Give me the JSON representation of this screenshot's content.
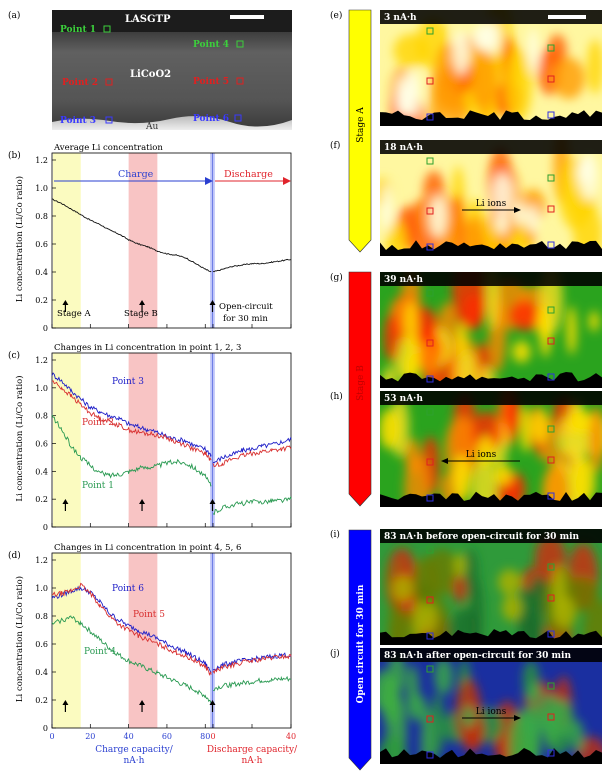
{
  "panel_labels": [
    "(a)",
    "(b)",
    "(c)",
    "(d)",
    "(e)",
    "(f)",
    "(g)",
    "(h)",
    "(i)",
    "(j)"
  ],
  "panel_a": {
    "top_label": "LASGTP",
    "middle_label": "LiCoO2",
    "bottom_label": "Au",
    "points": [
      "Point 1",
      "Point 2",
      "Point 3",
      "Point 4",
      "Point 5",
      "Point 6"
    ]
  },
  "shared": {
    "ylabel": "Li concentration (Li/Co ratio)",
    "yticks": [
      "0",
      "0.2",
      "0.4",
      "0.6",
      "0.8",
      "1.0",
      "1.2"
    ],
    "xticks_charge": [
      "0",
      "20",
      "40",
      "60",
      "80"
    ],
    "xticks_discharge": [
      "0",
      "40"
    ],
    "xlabel_charge": "Charge capacity/",
    "xlabel_charge_unit": "nA·h",
    "xlabel_discharge": "Discharge capacity/",
    "xlabel_discharge_unit": "nA·h",
    "colors": {
      "charge": "#2a3fd0",
      "discharge": "#e0242c",
      "stageA": "#fbfbc0",
      "stageB": "#f8c4c4",
      "oc": "#6f7ee6"
    }
  },
  "chart_data": [
    {
      "type": "line",
      "panel": "b",
      "title": "Average Li concentration",
      "ylim": [
        0,
        1.2
      ],
      "xlim_charge": [
        0,
        83
      ],
      "xlim_discharge": [
        0,
        40
      ],
      "charge_label": "Charge",
      "discharge_label": "Discharge",
      "stageA_label": "Stage A",
      "stageB_label": "Stage B",
      "oc_label_1": "Open-circuit",
      "oc_label_2": "for 30 min",
      "series": [
        {
          "name": "average",
          "color": "#111111",
          "charge": [
            [
              0,
              0.92
            ],
            [
              5,
              0.89
            ],
            [
              10,
              0.85
            ],
            [
              15,
              0.81
            ],
            [
              20,
              0.77
            ],
            [
              25,
              0.74
            ],
            [
              30,
              0.7
            ],
            [
              35,
              0.67
            ],
            [
              40,
              0.63
            ],
            [
              45,
              0.6
            ],
            [
              50,
              0.58
            ],
            [
              55,
              0.55
            ],
            [
              60,
              0.53
            ],
            [
              65,
              0.52
            ],
            [
              70,
              0.5
            ],
            [
              75,
              0.46
            ],
            [
              80,
              0.42
            ],
            [
              83,
              0.4
            ]
          ],
          "discharge": [
            [
              0,
              0.4
            ],
            [
              5,
              0.42
            ],
            [
              10,
              0.44
            ],
            [
              15,
              0.45
            ],
            [
              20,
              0.46
            ],
            [
              25,
              0.46
            ],
            [
              30,
              0.47
            ],
            [
              35,
              0.48
            ],
            [
              40,
              0.49
            ]
          ]
        }
      ]
    },
    {
      "type": "line",
      "panel": "c",
      "title": "Changes in Li concentration in point 1, 2, 3",
      "ylim": [
        0,
        1.2
      ],
      "series": [
        {
          "name": "Point 3",
          "color": "#2020c8",
          "charge": [
            [
              0,
              1.1
            ],
            [
              5,
              1.05
            ],
            [
              10,
              0.98
            ],
            [
              15,
              0.92
            ],
            [
              20,
              0.86
            ],
            [
              25,
              0.83
            ],
            [
              30,
              0.8
            ],
            [
              35,
              0.78
            ],
            [
              40,
              0.74
            ],
            [
              45,
              0.72
            ],
            [
              50,
              0.7
            ],
            [
              55,
              0.68
            ],
            [
              60,
              0.65
            ],
            [
              65,
              0.63
            ],
            [
              70,
              0.62
            ],
            [
              75,
              0.58
            ],
            [
              80,
              0.56
            ],
            [
              83,
              0.52
            ]
          ],
          "discharge": [
            [
              0,
              0.46
            ],
            [
              5,
              0.5
            ],
            [
              10,
              0.52
            ],
            [
              15,
              0.55
            ],
            [
              20,
              0.56
            ],
            [
              25,
              0.58
            ],
            [
              30,
              0.59
            ],
            [
              35,
              0.61
            ],
            [
              40,
              0.63
            ]
          ]
        },
        {
          "name": "Point 2",
          "color": "#d83030",
          "charge": [
            [
              0,
              1.05
            ],
            [
              5,
              1.0
            ],
            [
              10,
              0.94
            ],
            [
              15,
              0.88
            ],
            [
              20,
              0.82
            ],
            [
              25,
              0.78
            ],
            [
              30,
              0.76
            ],
            [
              35,
              0.73
            ],
            [
              40,
              0.7
            ],
            [
              45,
              0.68
            ],
            [
              50,
              0.67
            ],
            [
              55,
              0.66
            ],
            [
              60,
              0.64
            ],
            [
              65,
              0.61
            ],
            [
              70,
              0.59
            ],
            [
              75,
              0.55
            ],
            [
              80,
              0.53
            ],
            [
              83,
              0.48
            ]
          ],
          "discharge": [
            [
              0,
              0.44
            ],
            [
              5,
              0.46
            ],
            [
              10,
              0.49
            ],
            [
              15,
              0.51
            ],
            [
              20,
              0.53
            ],
            [
              25,
              0.54
            ],
            [
              30,
              0.55
            ],
            [
              35,
              0.56
            ],
            [
              40,
              0.57
            ]
          ]
        },
        {
          "name": "Point 1",
          "color": "#2a9a52",
          "charge": [
            [
              0,
              0.8
            ],
            [
              5,
              0.7
            ],
            [
              10,
              0.58
            ],
            [
              15,
              0.5
            ],
            [
              20,
              0.44
            ],
            [
              25,
              0.39
            ],
            [
              30,
              0.37
            ],
            [
              35,
              0.38
            ],
            [
              40,
              0.4
            ],
            [
              45,
              0.42
            ],
            [
              50,
              0.43
            ],
            [
              55,
              0.44
            ],
            [
              60,
              0.46
            ],
            [
              65,
              0.47
            ],
            [
              70,
              0.46
            ],
            [
              75,
              0.42
            ],
            [
              80,
              0.36
            ],
            [
              83,
              0.3
            ]
          ],
          "discharge": [
            [
              0,
              0.1
            ],
            [
              5,
              0.14
            ],
            [
              10,
              0.16
            ],
            [
              15,
              0.17
            ],
            [
              20,
              0.18
            ],
            [
              25,
              0.18
            ],
            [
              30,
              0.19
            ],
            [
              35,
              0.19
            ],
            [
              40,
              0.2
            ]
          ]
        }
      ]
    },
    {
      "type": "line",
      "panel": "d",
      "title": "Changes in Li concentration in point 4, 5, 6",
      "ylim": [
        0,
        1.2
      ],
      "series": [
        {
          "name": "Point 6",
          "color": "#2020c8",
          "charge": [
            [
              0,
              0.93
            ],
            [
              5,
              0.95
            ],
            [
              10,
              0.98
            ],
            [
              15,
              1.0
            ],
            [
              20,
              0.97
            ],
            [
              25,
              0.9
            ],
            [
              30,
              0.82
            ],
            [
              35,
              0.77
            ],
            [
              40,
              0.73
            ],
            [
              45,
              0.7
            ],
            [
              50,
              0.67
            ],
            [
              55,
              0.64
            ],
            [
              60,
              0.6
            ],
            [
              65,
              0.57
            ],
            [
              70,
              0.54
            ],
            [
              75,
              0.5
            ],
            [
              80,
              0.46
            ],
            [
              83,
              0.4
            ]
          ],
          "discharge": [
            [
              0,
              0.42
            ],
            [
              5,
              0.45
            ],
            [
              10,
              0.47
            ],
            [
              15,
              0.48
            ],
            [
              20,
              0.49
            ],
            [
              25,
              0.5
            ],
            [
              30,
              0.51
            ],
            [
              35,
              0.52
            ],
            [
              40,
              0.52
            ]
          ]
        },
        {
          "name": "Point 5",
          "color": "#d83030",
          "charge": [
            [
              0,
              0.95
            ],
            [
              5,
              0.96
            ],
            [
              10,
              0.98
            ],
            [
              15,
              1.02
            ],
            [
              20,
              0.96
            ],
            [
              25,
              0.88
            ],
            [
              30,
              0.8
            ],
            [
              35,
              0.74
            ],
            [
              40,
              0.7
            ],
            [
              45,
              0.66
            ],
            [
              50,
              0.63
            ],
            [
              55,
              0.6
            ],
            [
              60,
              0.57
            ],
            [
              65,
              0.54
            ],
            [
              70,
              0.51
            ],
            [
              75,
              0.48
            ],
            [
              80,
              0.44
            ],
            [
              83,
              0.38
            ]
          ],
          "discharge": [
            [
              0,
              0.4
            ],
            [
              5,
              0.43
            ],
            [
              10,
              0.45
            ],
            [
              15,
              0.47
            ],
            [
              20,
              0.48
            ],
            [
              25,
              0.49
            ],
            [
              30,
              0.5
            ],
            [
              35,
              0.51
            ],
            [
              40,
              0.51
            ]
          ]
        },
        {
          "name": "Point 4",
          "color": "#2a9a52",
          "charge": [
            [
              0,
              0.74
            ],
            [
              5,
              0.77
            ],
            [
              10,
              0.79
            ],
            [
              15,
              0.75
            ],
            [
              20,
              0.69
            ],
            [
              25,
              0.63
            ],
            [
              30,
              0.57
            ],
            [
              35,
              0.52
            ],
            [
              40,
              0.48
            ],
            [
              45,
              0.45
            ],
            [
              50,
              0.42
            ],
            [
              55,
              0.39
            ],
            [
              60,
              0.36
            ],
            [
              65,
              0.33
            ],
            [
              70,
              0.3
            ],
            [
              75,
              0.27
            ],
            [
              80,
              0.23
            ],
            [
              83,
              0.18
            ]
          ],
          "discharge": [
            [
              0,
              0.28
            ],
            [
              5,
              0.3
            ],
            [
              10,
              0.31
            ],
            [
              15,
              0.32
            ],
            [
              20,
              0.33
            ],
            [
              25,
              0.34
            ],
            [
              30,
              0.34
            ],
            [
              35,
              0.35
            ],
            [
              40,
              0.35
            ]
          ]
        }
      ]
    }
  ],
  "maps": [
    {
      "label": "(e)",
      "title": "3 nA·h",
      "scheme": "yellow",
      "arrow": ""
    },
    {
      "label": "(f)",
      "title": "18 nA·h",
      "scheme": "yellow",
      "arrow": "right",
      "arrow_text": "Li ions"
    },
    {
      "label": "(g)",
      "title": "39 nA·h",
      "scheme": "red",
      "arrow": ""
    },
    {
      "label": "(h)",
      "title": "53 nA·h",
      "scheme": "red",
      "arrow": "left",
      "arrow_text": "Li ions"
    },
    {
      "label": "(i)",
      "title": "83 nA·h before open-circuit for 30 min",
      "scheme": "bluegreen",
      "arrow": ""
    },
    {
      "label": "(j)",
      "title": "83 nA·h after open-circuit for 30 min",
      "scheme": "bluegreen2",
      "arrow": "right",
      "arrow_text": "Li ions"
    }
  ],
  "stage_bars": [
    {
      "label": "Stage A",
      "color": "#ffff00"
    },
    {
      "label": "Stage B",
      "color": "#ff0000"
    },
    {
      "label": "Open circuit for 30 min",
      "color": "#0000ff"
    }
  ]
}
